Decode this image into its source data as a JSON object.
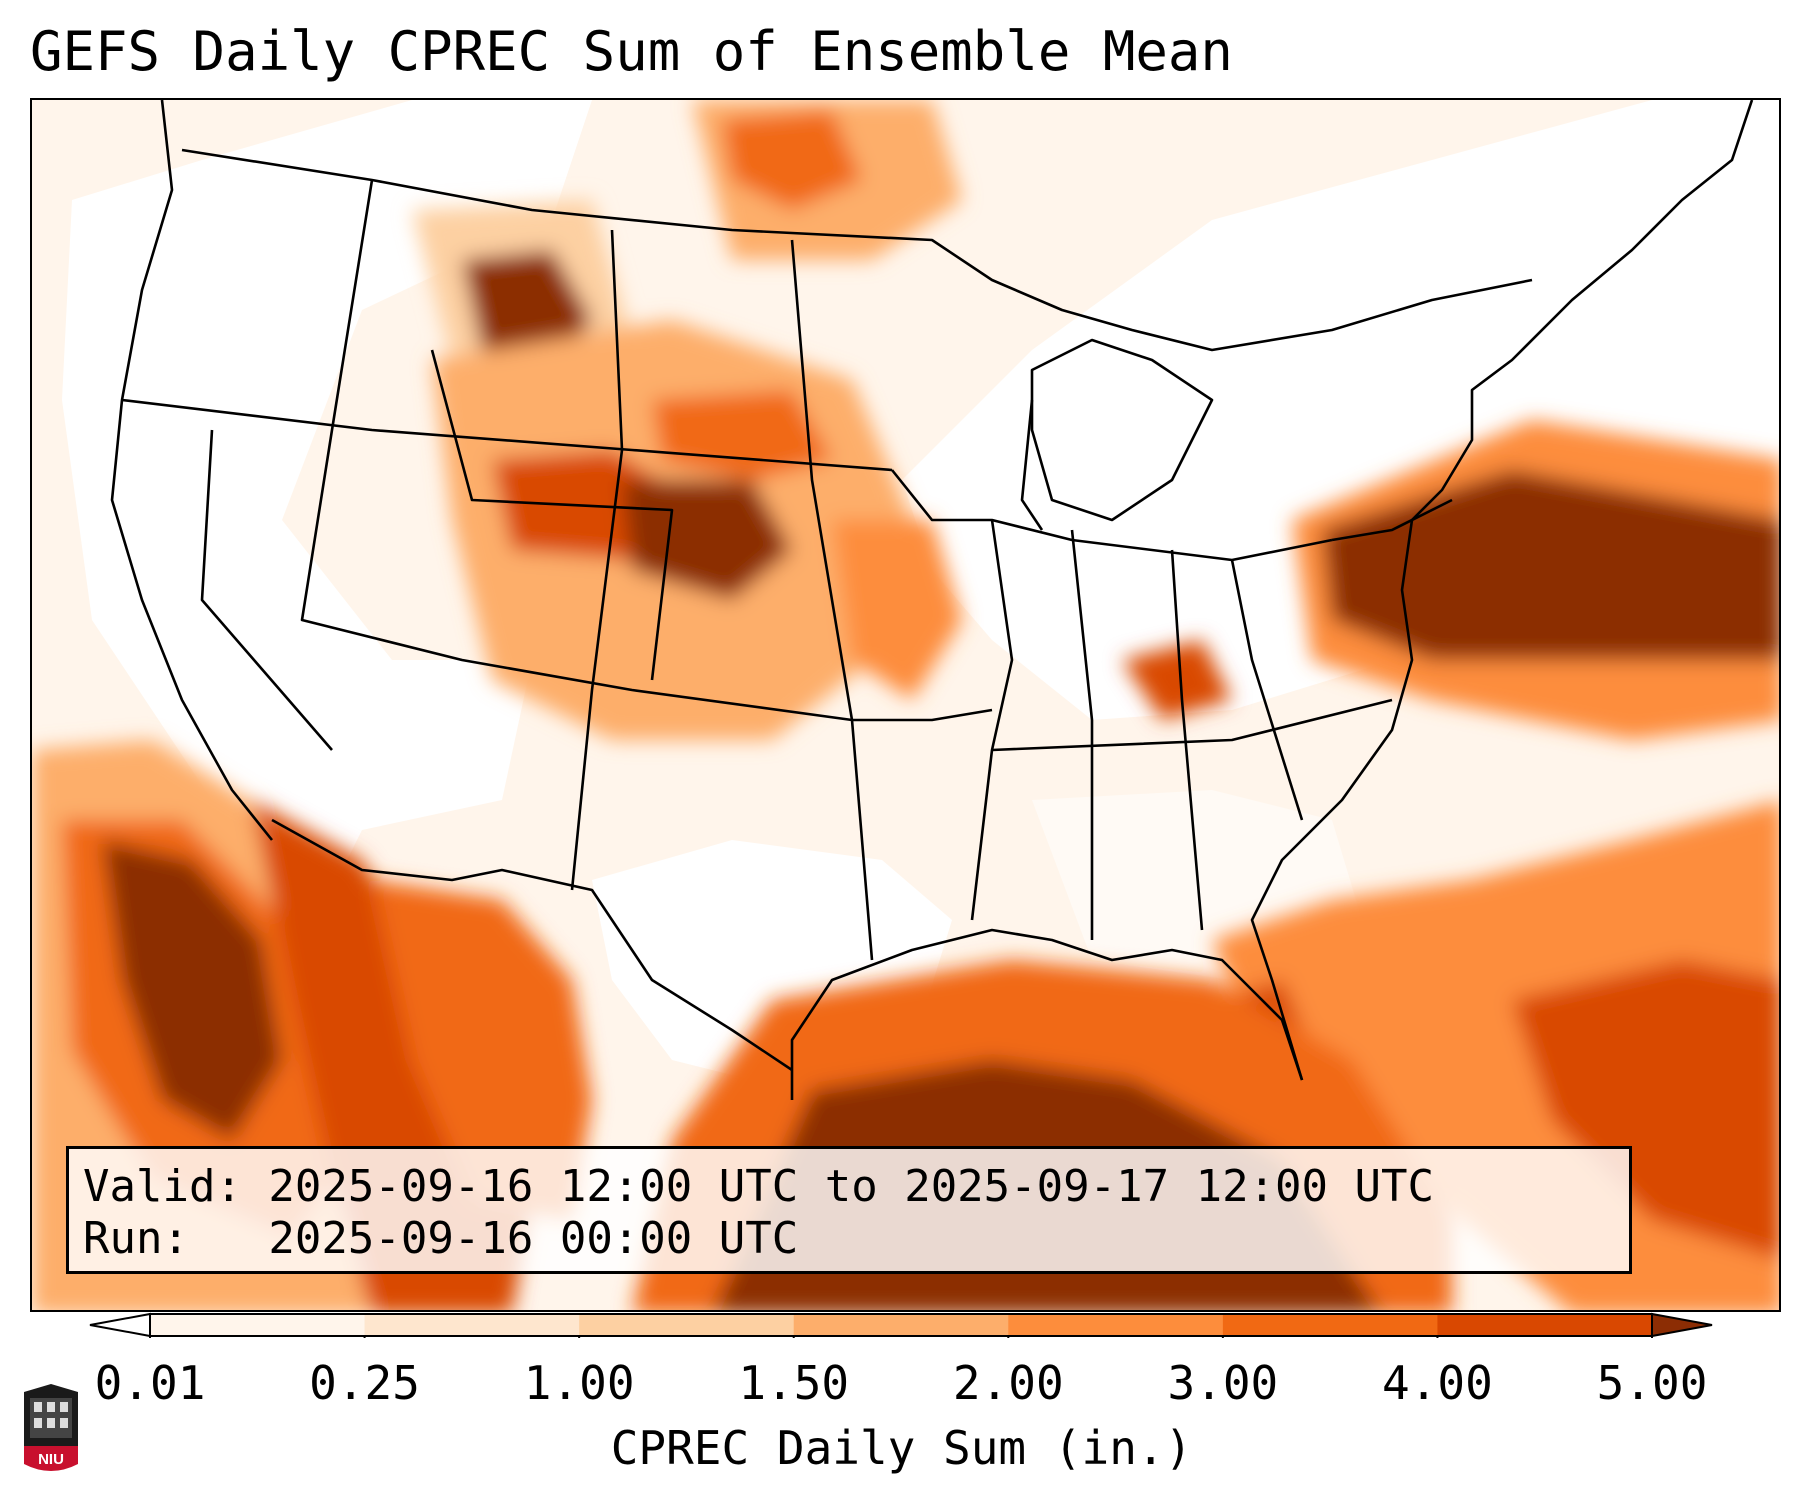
{
  "title": "GEFS Daily CPREC Sum of Ensemble Mean",
  "valid_line": "Valid: 2025-09-16 12:00 UTC to 2025-09-17 12:00 UTC",
  "run_line": "Run:   2025-09-16 00:00 UTC",
  "colorbar": {
    "label": "CPREC Daily Sum (in.)",
    "ticks": [
      "0.01",
      "0.25",
      "1.00",
      "1.50",
      "2.00",
      "3.00",
      "4.00",
      "5.00"
    ],
    "colors": [
      "#fff5eb",
      "#fee6ce",
      "#fdd0a2",
      "#fdae6b",
      "#fd8d3c",
      "#f16913",
      "#d94801",
      "#8c2d04"
    ]
  },
  "logo": {
    "text": "NIU",
    "color": "#c8102e"
  },
  "precip_areas": [
    {
      "name": "northern-rockies-max",
      "level": "5.00+"
    },
    {
      "name": "colorado-plains-max",
      "level": "5.00+"
    },
    {
      "name": "mid-atlantic-max",
      "level": "5.00+"
    },
    {
      "name": "eastern-pacific-max",
      "level": "5.00+"
    },
    {
      "name": "gulf-of-mexico-band",
      "level": "4.00-5.00"
    },
    {
      "name": "florida-atlantic-band",
      "level": "3.00-4.00"
    }
  ]
}
